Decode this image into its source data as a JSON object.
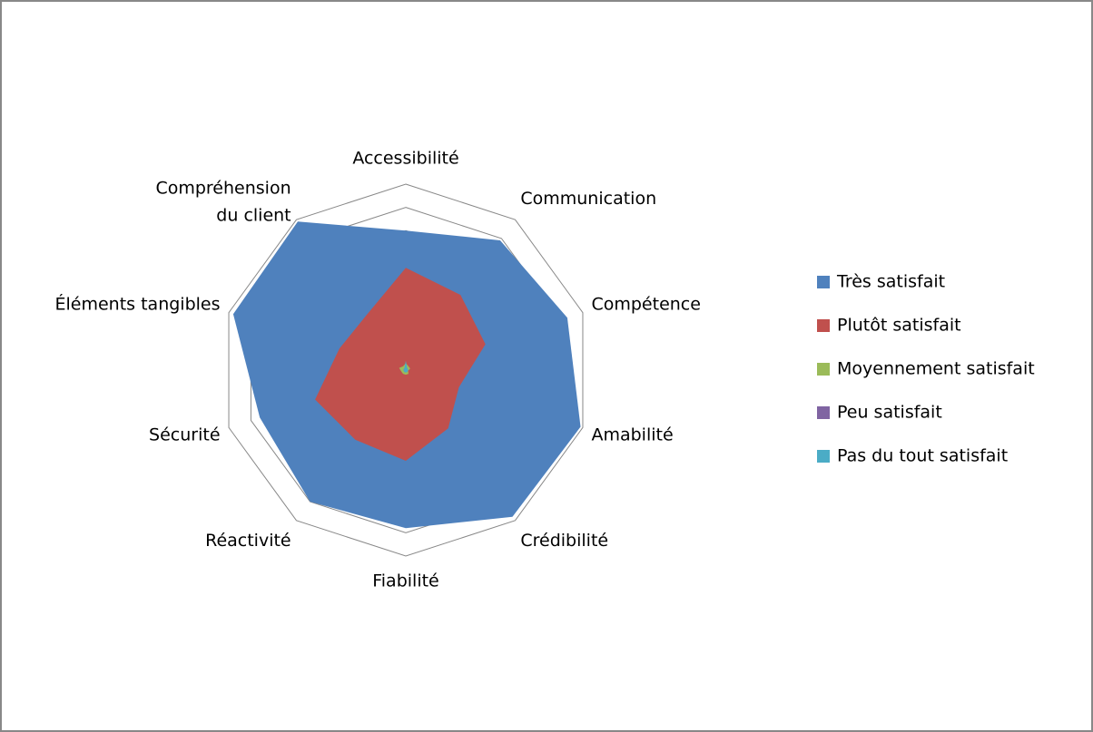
{
  "chart_data": {
    "type": "radar",
    "categories": [
      "Accessibilité",
      "Communication",
      "Compétence",
      "Amabilité",
      "Crédibilité",
      "Fiabilité",
      "Réactivité",
      "Sécurité",
      "Éléments tangibles",
      "Compréhension du client"
    ],
    "series": [
      {
        "name": "Très satisfait",
        "color": "#4f81bd",
        "values": [
          60,
          69,
          73,
          79,
          78,
          68,
          70,
          66,
          78,
          79
        ]
      },
      {
        "name": "Plutôt satisfait",
        "color": "#c0504d",
        "values": [
          44,
          40,
          36,
          24,
          31,
          39,
          37,
          41,
          30,
          29
        ]
      },
      {
        "name": "Moyennement satisfait",
        "color": "#9bbb59",
        "values": [
          3,
          2,
          2,
          1,
          2,
          2,
          2,
          2,
          3,
          2
        ]
      },
      {
        "name": "Peu satisfait",
        "color": "#8064a2",
        "values": [
          1,
          1,
          1,
          0,
          1,
          1,
          1,
          1,
          1,
          1
        ]
      },
      {
        "name": "Pas du tout satisfait",
        "color": "#4bacc6",
        "values": [
          4,
          1,
          1,
          1,
          1,
          1,
          1,
          1,
          1,
          1
        ]
      }
    ],
    "ylim": [
      0,
      80
    ],
    "yticks": [
      0,
      10,
      20,
      30,
      40,
      50,
      60,
      70,
      80
    ],
    "grid": true,
    "legend": "right"
  }
}
